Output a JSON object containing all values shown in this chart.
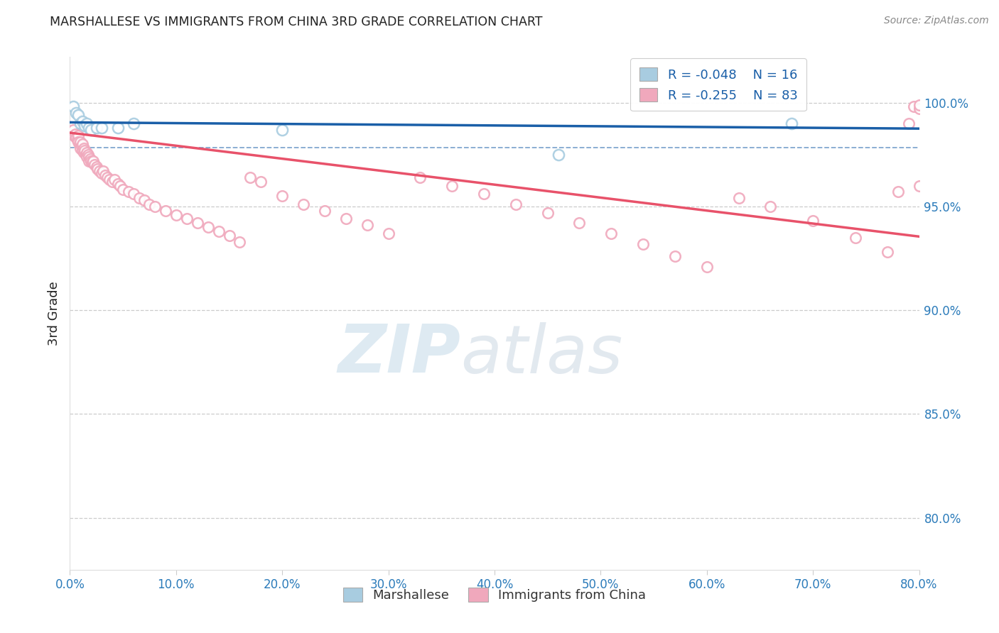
{
  "title": "MARSHALLESE VS IMMIGRANTS FROM CHINA 3RD GRADE CORRELATION CHART",
  "source": "Source: ZipAtlas.com",
  "ylabel": "3rd Grade",
  "ytick_values": [
    1.0,
    0.95,
    0.9,
    0.85,
    0.8
  ],
  "xlim": [
    0.0,
    0.8
  ],
  "ylim": [
    0.775,
    1.022
  ],
  "blue_R": "-0.048",
  "blue_N": "16",
  "pink_R": "-0.255",
  "pink_N": "83",
  "blue_scatter_color": "#a8cce0",
  "pink_scatter_color": "#f0a8bc",
  "blue_line_color": "#1a5fa8",
  "pink_line_color": "#e8526a",
  "blue_scatter_x": [
    0.003,
    0.006,
    0.008,
    0.01,
    0.012,
    0.014,
    0.016,
    0.018,
    0.02,
    0.025,
    0.03,
    0.045,
    0.06,
    0.2,
    0.46,
    0.68
  ],
  "blue_scatter_y": [
    0.998,
    0.995,
    0.994,
    0.99,
    0.991,
    0.989,
    0.99,
    0.988,
    0.987,
    0.988,
    0.988,
    0.988,
    0.99,
    0.987,
    0.975,
    0.99
  ],
  "pink_scatter_x": [
    0.003,
    0.004,
    0.005,
    0.006,
    0.007,
    0.008,
    0.008,
    0.009,
    0.01,
    0.01,
    0.011,
    0.012,
    0.012,
    0.013,
    0.013,
    0.014,
    0.015,
    0.016,
    0.016,
    0.017,
    0.018,
    0.018,
    0.019,
    0.02,
    0.021,
    0.022,
    0.023,
    0.025,
    0.026,
    0.028,
    0.03,
    0.031,
    0.033,
    0.035,
    0.037,
    0.04,
    0.042,
    0.045,
    0.047,
    0.05,
    0.055,
    0.06,
    0.065,
    0.07,
    0.075,
    0.08,
    0.09,
    0.1,
    0.11,
    0.12,
    0.13,
    0.14,
    0.15,
    0.16,
    0.17,
    0.18,
    0.2,
    0.22,
    0.24,
    0.26,
    0.28,
    0.3,
    0.33,
    0.36,
    0.39,
    0.42,
    0.45,
    0.48,
    0.51,
    0.54,
    0.57,
    0.6,
    0.63,
    0.66,
    0.7,
    0.74,
    0.77,
    0.78,
    0.79,
    0.795,
    0.8,
    0.8,
    0.8
  ],
  "pink_scatter_y": [
    0.987,
    0.984,
    0.985,
    0.983,
    0.982,
    0.984,
    0.981,
    0.98,
    0.981,
    0.978,
    0.979,
    0.98,
    0.977,
    0.978,
    0.976,
    0.977,
    0.975,
    0.976,
    0.974,
    0.975,
    0.974,
    0.972,
    0.973,
    0.972,
    0.971,
    0.972,
    0.97,
    0.969,
    0.968,
    0.967,
    0.966,
    0.967,
    0.965,
    0.964,
    0.963,
    0.962,
    0.963,
    0.961,
    0.96,
    0.958,
    0.957,
    0.956,
    0.954,
    0.953,
    0.951,
    0.95,
    0.948,
    0.946,
    0.944,
    0.942,
    0.94,
    0.938,
    0.936,
    0.933,
    0.964,
    0.962,
    0.955,
    0.951,
    0.948,
    0.944,
    0.941,
    0.937,
    0.964,
    0.96,
    0.956,
    0.951,
    0.947,
    0.942,
    0.937,
    0.932,
    0.926,
    0.921,
    0.954,
    0.95,
    0.943,
    0.935,
    0.928,
    0.957,
    0.99,
    0.998,
    0.96,
    0.997,
    0.999
  ],
  "blue_trendline_x": [
    0.0,
    0.8
  ],
  "blue_trendline_y": [
    0.9905,
    0.9875
  ],
  "pink_trendline_x": [
    0.0,
    0.8
  ],
  "pink_trendline_y": [
    0.9855,
    0.9355
  ],
  "dashed_line_y": 0.9785,
  "legend_label_blue": "Marshallese",
  "legend_label_pink": "Immigrants from China",
  "background_color": "#ffffff",
  "grid_color": "#cccccc",
  "title_color": "#222222",
  "ytick_color": "#2b7bba",
  "xtick_color": "#2b7bba"
}
